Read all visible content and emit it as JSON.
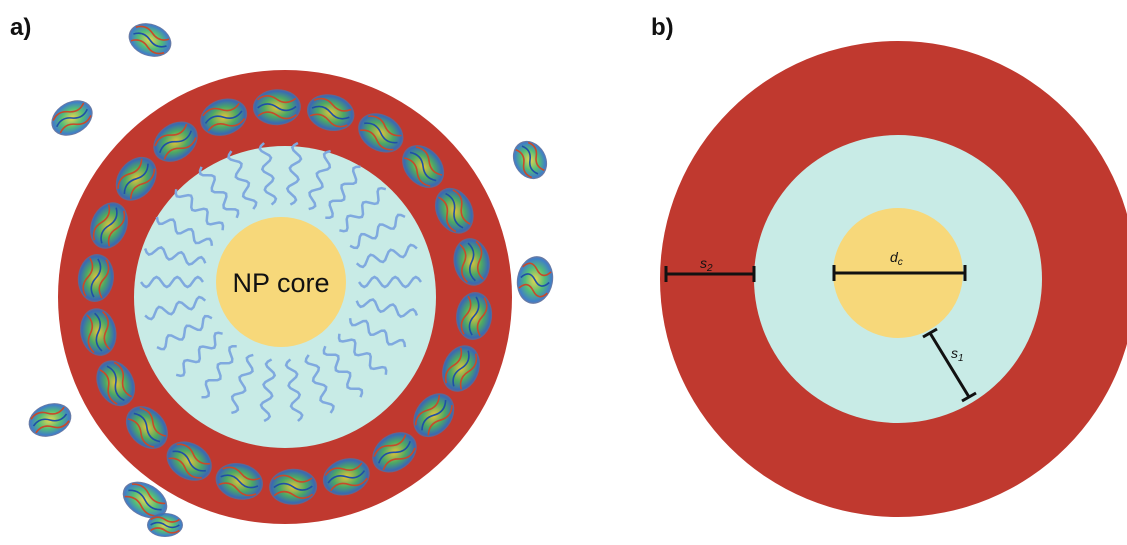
{
  "panels": {
    "a": {
      "label": "a)",
      "core_label": "NP core"
    },
    "b": {
      "label": "b)"
    }
  },
  "dimensions": {
    "s2": {
      "base": "s",
      "sub": "2"
    },
    "dc": {
      "base": "d",
      "sub": "c"
    },
    "s1": {
      "base": "s",
      "sub": "1"
    }
  },
  "colors": {
    "outer_shell": "#c0392f",
    "inner_shell": "#c8ebe6",
    "core": "#f7d87a",
    "ligand": "#7fa9df",
    "dimension_line": "#111111"
  },
  "icons": {
    "ligands": "wavy-line-icon",
    "proteins": "protein-ribbon-icon"
  }
}
